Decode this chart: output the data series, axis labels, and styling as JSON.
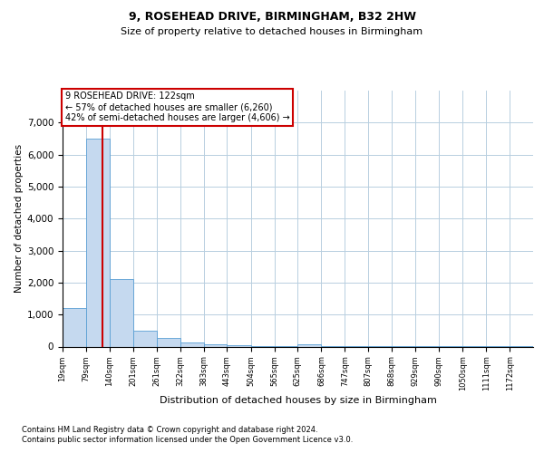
{
  "title1": "9, ROSEHEAD DRIVE, BIRMINGHAM, B32 2HW",
  "title2": "Size of property relative to detached houses in Birmingham",
  "xlabel": "Distribution of detached houses by size in Birmingham",
  "ylabel": "Number of detached properties",
  "footnote1": "Contains HM Land Registry data © Crown copyright and database right 2024.",
  "footnote2": "Contains public sector information licensed under the Open Government Licence v3.0.",
  "annotation_title": "9 ROSEHEAD DRIVE: 122sqm",
  "annotation_line1": "← 57% of detached houses are smaller (6,260)",
  "annotation_line2": "42% of semi-detached houses are larger (4,606) →",
  "property_size": 122,
  "bar_edges": [
    19,
    79,
    140,
    201,
    261,
    322,
    383,
    443,
    504,
    565,
    625,
    686,
    747,
    807,
    868,
    929,
    990,
    1050,
    1111,
    1172,
    1232
  ],
  "bar_heights": [
    1200,
    6500,
    2100,
    500,
    270,
    130,
    80,
    30,
    20,
    10,
    80,
    5,
    5,
    5,
    5,
    5,
    5,
    5,
    5,
    5
  ],
  "bar_color": "#c5d9ef",
  "bar_edge_color": "#5a9fd4",
  "vline_color": "#cc0000",
  "grid_color": "#b8cfe0",
  "background_color": "#ffffff",
  "ylim": [
    0,
    8000
  ],
  "yticks": [
    0,
    1000,
    2000,
    3000,
    4000,
    5000,
    6000,
    7000
  ],
  "annotation_box_color": "#ffffff",
  "annotation_box_edge": "#cc0000",
  "title1_fontsize": 9,
  "title2_fontsize": 8,
  "xlabel_fontsize": 8,
  "ylabel_fontsize": 7.5,
  "ytick_fontsize": 7.5,
  "xtick_fontsize": 6,
  "footnote_fontsize": 6,
  "annot_fontsize": 7
}
